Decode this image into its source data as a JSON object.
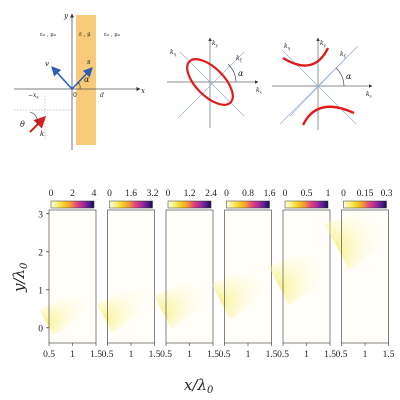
{
  "schematic": {
    "axis_x": "x",
    "axis_y": "y",
    "region_left": "ε₀ , μ₀",
    "region_slab": "ε̄ , μ̄",
    "region_right": "ε₀ , μ₀",
    "vec_v": "v",
    "vec_s": "s",
    "vec_k": "k",
    "angle_alpha": "α",
    "angle_theta": "θ",
    "origin": "0",
    "point_neg_xs": "−x",
    "point_neg_xs_sub": "s",
    "point_d": "d"
  },
  "dispersion": [
    {
      "type": "ellipse",
      "ky": "k",
      "ky_sub": "y",
      "kx": "k",
      "kx_sub": "x",
      "kxi": "k",
      "kxi_sub": "ξ",
      "keta": "k",
      "keta_sub": "η",
      "alpha": "α"
    },
    {
      "type": "hyperbola",
      "ky": "k",
      "ky_sub": "y",
      "kx": "k",
      "kx_sub": "x",
      "kxi": "k",
      "kxi_sub": "ξ",
      "keta": "k",
      "keta_sub": "η",
      "alpha": "α"
    }
  ],
  "heatmaps": {
    "ylabel_main": "y/λ",
    "ylabel_sub": "0",
    "xlabel_main": "x/λ",
    "xlabel_sub": "0",
    "y_ticks": [
      "3",
      "2",
      "1",
      "0"
    ],
    "x_ticks": [
      "0.5",
      "1",
      "1.5"
    ],
    "colormap": [
      "#fffbe6",
      "#f7f07a",
      "#f5d020",
      "#f49a37",
      "#e0457a",
      "#a82a9a",
      "#4a1c8c",
      "#1b0c41"
    ],
    "panels": [
      {
        "colorbar_ticks": [
          "0",
          "2",
          "4"
        ],
        "center_y": 0.0,
        "spread": 0.4
      },
      {
        "colorbar_ticks": [
          "0",
          "1.6",
          "3.2"
        ],
        "center_y": 0.1,
        "spread": 0.45
      },
      {
        "colorbar_ticks": [
          "0",
          "1.2",
          "2.4"
        ],
        "center_y": 0.25,
        "spread": 0.5
      },
      {
        "colorbar_ticks": [
          "0",
          "0.8",
          "1.6"
        ],
        "center_y": 0.5,
        "spread": 0.55
      },
      {
        "colorbar_ticks": [
          "0",
          "0.5",
          "1"
        ],
        "center_y": 0.9,
        "spread": 0.6
      },
      {
        "colorbar_ticks": [
          "0",
          "0.15",
          "0.3"
        ],
        "center_y": 1.9,
        "spread": 0.7
      }
    ]
  }
}
